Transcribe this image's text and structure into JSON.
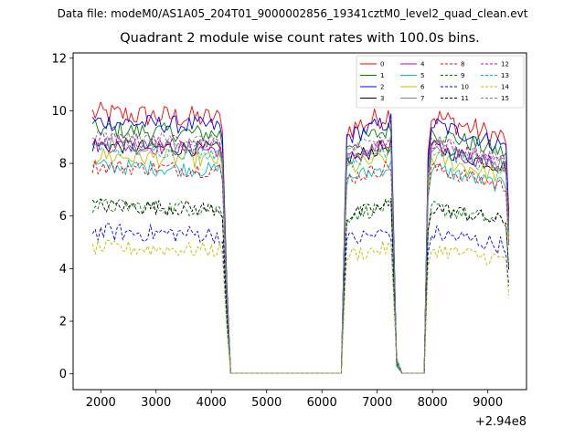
{
  "figure_label": "Data file: modeM0/AS1A05_204T01_9000002856_19341cztM0_level2_quad_clean.evt",
  "chart_data": {
    "type": "line",
    "title": "Quadrant 2 module wise count rates with 100.0s bins.",
    "xlabel": "",
    "ylabel": "",
    "x_offset_label": "+2.94e8",
    "xlim": [
      1500,
      9700
    ],
    "ylim": [
      -0.6,
      12.2
    ],
    "xticks": [
      2000,
      3000,
      4000,
      5000,
      6000,
      7000,
      8000,
      9000
    ],
    "yticks": [
      0,
      2,
      4,
      6,
      8,
      10,
      12
    ],
    "legend_position": "upper right",
    "series": [
      {
        "name": "0",
        "color": "#ff0000",
        "dash": "solid",
        "level": 9.9,
        "amp": 0.45
      },
      {
        "name": "1",
        "color": "#008000",
        "dash": "solid",
        "level": 9.3,
        "amp": 0.35
      },
      {
        "name": "2",
        "color": "#0000ff",
        "dash": "solid",
        "level": 9.6,
        "amp": 0.35
      },
      {
        "name": "3",
        "color": "#000000",
        "dash": "solid",
        "level": 8.7,
        "amp": 0.3
      },
      {
        "name": "4",
        "color": "#c000c0",
        "dash": "solid",
        "level": 8.7,
        "amp": 0.3
      },
      {
        "name": "5",
        "color": "#00bfbf",
        "dash": "solid",
        "level": 7.9,
        "amp": 0.3
      },
      {
        "name": "6",
        "color": "#bfbf00",
        "dash": "solid",
        "level": 8.3,
        "amp": 0.35
      },
      {
        "name": "7",
        "color": "#808080",
        "dash": "solid",
        "level": 8.8,
        "amp": 0.3
      },
      {
        "name": "8",
        "color": "#ff0000",
        "dash": "dashed",
        "level": 7.9,
        "amp": 0.3
      },
      {
        "name": "9",
        "color": "#008000",
        "dash": "dashed",
        "level": 6.4,
        "amp": 0.3
      },
      {
        "name": "10",
        "color": "#0000ff",
        "dash": "dashed",
        "level": 5.4,
        "amp": 0.35
      },
      {
        "name": "11",
        "color": "#000000",
        "dash": "dashed",
        "level": 6.4,
        "amp": 0.3
      },
      {
        "name": "12",
        "color": "#c000c0",
        "dash": "dashed",
        "level": 8.9,
        "amp": 0.3
      },
      {
        "name": "13",
        "color": "#00bfbf",
        "dash": "dashed",
        "level": 8.6,
        "amp": 0.3
      },
      {
        "name": "14",
        "color": "#bfbf00",
        "dash": "dashed",
        "level": 4.8,
        "amp": 0.3
      },
      {
        "name": "15",
        "color": "#808080",
        "dash": "dashed",
        "level": 9.0,
        "amp": 0.3
      }
    ],
    "segments": [
      {
        "x_start": 1850,
        "x_end": 4150,
        "shape": "flat"
      },
      {
        "x_start": 6350,
        "x_end": 7250,
        "shape": "ramp"
      },
      {
        "x_start": 7850,
        "x_end": 9350,
        "shape": "decay"
      }
    ],
    "zero_ranges": [
      [
        4350,
        6350
      ],
      [
        7450,
        7850
      ]
    ]
  }
}
